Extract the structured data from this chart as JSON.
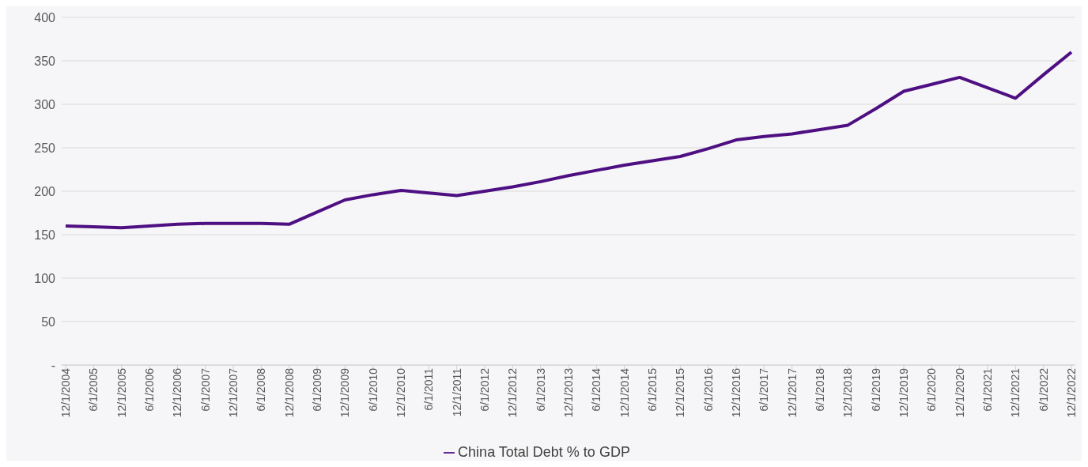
{
  "chart_data": {
    "type": "line",
    "categories": [
      "12/1/2004",
      "6/1/2005",
      "12/1/2005",
      "6/1/2006",
      "12/1/2006",
      "6/1/2007",
      "12/1/2007",
      "6/1/2008",
      "12/1/2008",
      "6/1/2009",
      "12/1/2009",
      "6/1/2010",
      "12/1/2010",
      "6/1/2011",
      "12/1/2011",
      "6/1/2012",
      "12/1/2012",
      "6/1/2013",
      "12/1/2013",
      "6/1/2014",
      "12/1/2014",
      "6/1/2015",
      "12/1/2015",
      "6/1/2016",
      "12/1/2016",
      "6/1/2017",
      "12/1/2017",
      "6/1/2018",
      "12/1/2018",
      "6/1/2019",
      "12/1/2019",
      "6/1/2020",
      "12/1/2020",
      "6/1/2021",
      "12/1/2021",
      "6/1/2022",
      "12/1/2022"
    ],
    "series": [
      {
        "name": "China Total Debt % to GDP",
        "color": "#4e0f82",
        "values": [
          160,
          159,
          158,
          160,
          162,
          163,
          163,
          163,
          162,
          176,
          190,
          196,
          201,
          198,
          195,
          200,
          205,
          211,
          218,
          224,
          230,
          235,
          240,
          249,
          259,
          263,
          266,
          271,
          276,
          295,
          315,
          323,
          331,
          319,
          307,
          334,
          360
        ]
      }
    ],
    "ylim": [
      0,
      400
    ],
    "yticks": [
      {
        "value": 0,
        "label": "-"
      },
      50,
      100,
      150,
      200,
      250,
      300,
      350,
      400
    ],
    "grid": "y",
    "legend": "bottom",
    "marker": "none",
    "line_style": "solid"
  }
}
